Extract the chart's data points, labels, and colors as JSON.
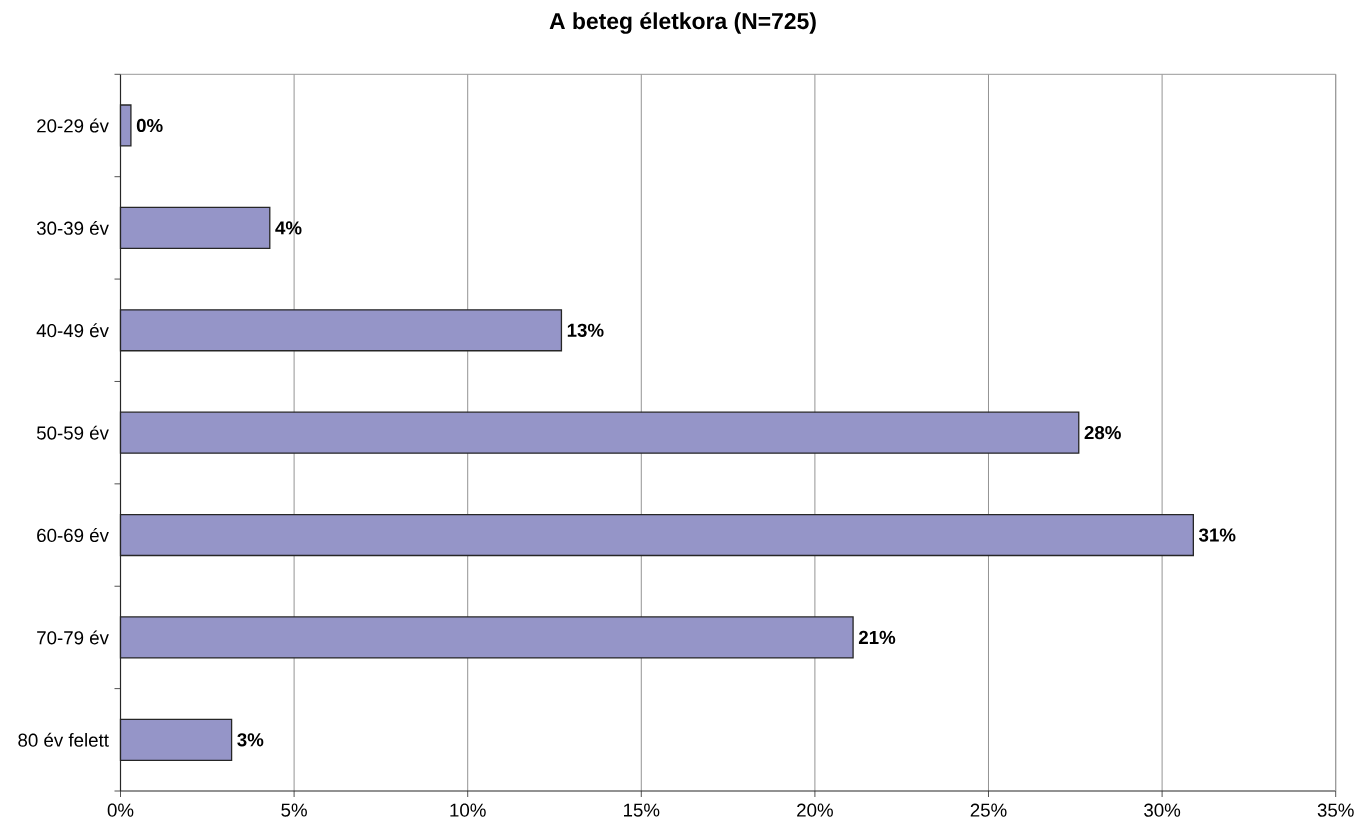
{
  "chart_data": {
    "type": "bar",
    "orientation": "horizontal",
    "title": "A beteg életkora (N=725)",
    "categories": [
      "20-29 év",
      "30-39 év",
      "40-49 év",
      "50-59 év",
      "60-69 év",
      "70-79 év",
      "80 év felett"
    ],
    "values": [
      0.3,
      4.3,
      12.7,
      27.6,
      30.9,
      21.1,
      3.2
    ],
    "value_labels": [
      "0%",
      "4%",
      "13%",
      "28%",
      "31%",
      "21%",
      "3%"
    ],
    "color": "#9595c8",
    "xlim": [
      0,
      35
    ],
    "xticks": [
      {
        "value": 0,
        "label": "0%"
      },
      {
        "value": 5,
        "label": "5%"
      },
      {
        "value": 10,
        "label": "10%"
      },
      {
        "value": 15,
        "label": "15%"
      },
      {
        "value": 20,
        "label": "20%"
      },
      {
        "value": 25,
        "label": "25%"
      },
      {
        "value": 30,
        "label": "30%"
      },
      {
        "value": 35,
        "label": "35%"
      }
    ],
    "grid": "x"
  }
}
